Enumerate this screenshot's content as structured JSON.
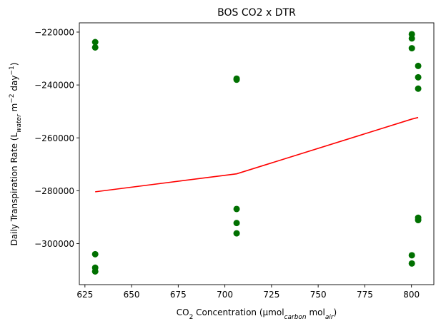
{
  "chart_data": {
    "type": "scatter",
    "title": "BOS CO2 x DTR",
    "xlabel": {
      "base": "CO",
      "sub1": "2",
      "mid": " Concentration (μmol",
      "sub2": "carbon",
      "mid2": " mol",
      "sub3": "air",
      "end": ")"
    },
    "ylabel": {
      "base": "Daily Transpiration Rate (L",
      "sub1": "water",
      "mid": " m",
      "sup1": "−2",
      "mid2": " day",
      "sup2": "−1",
      "end": ")"
    },
    "xlim": [
      622,
      812
    ],
    "ylim": [
      -315500,
      -216500
    ],
    "xticks": [
      625,
      650,
      675,
      700,
      725,
      750,
      775,
      800
    ],
    "xtick_labels": [
      "625",
      "650",
      "675",
      "700",
      "725",
      "750",
      "775",
      "800"
    ],
    "yticks": [
      -220000,
      -240000,
      -260000,
      -280000,
      -300000
    ],
    "ytick_labels": [
      "−220000",
      "−240000",
      "−260000",
      "−280000",
      "−300000"
    ],
    "grid": false,
    "colors": {
      "points": "#007000",
      "trend": "#ff0000"
    },
    "series": [
      {
        "kind": "points",
        "points": [
          [
            630.5,
            -223800
          ],
          [
            630.5,
            -225800
          ],
          [
            630.5,
            -304000
          ],
          [
            630.5,
            -309100
          ],
          [
            630.5,
            -310500
          ],
          [
            706.3,
            -237600
          ],
          [
            706.3,
            -238000
          ],
          [
            706.3,
            -286900
          ],
          [
            706.3,
            -292200
          ],
          [
            706.3,
            -296100
          ],
          [
            800.2,
            -220800
          ],
          [
            800.2,
            -222400
          ],
          [
            800.2,
            -226100
          ],
          [
            800.2,
            -304400
          ],
          [
            800.2,
            -307500
          ],
          [
            803.6,
            -232800
          ],
          [
            803.6,
            -237100
          ],
          [
            803.6,
            -241400
          ],
          [
            803.6,
            -290200
          ],
          [
            803.6,
            -291100
          ]
        ]
      },
      {
        "kind": "line",
        "points": [
          [
            630.5,
            -280400
          ],
          [
            706.3,
            -273600
          ],
          [
            800.2,
            -252900
          ],
          [
            803.6,
            -252300
          ]
        ]
      }
    ]
  }
}
